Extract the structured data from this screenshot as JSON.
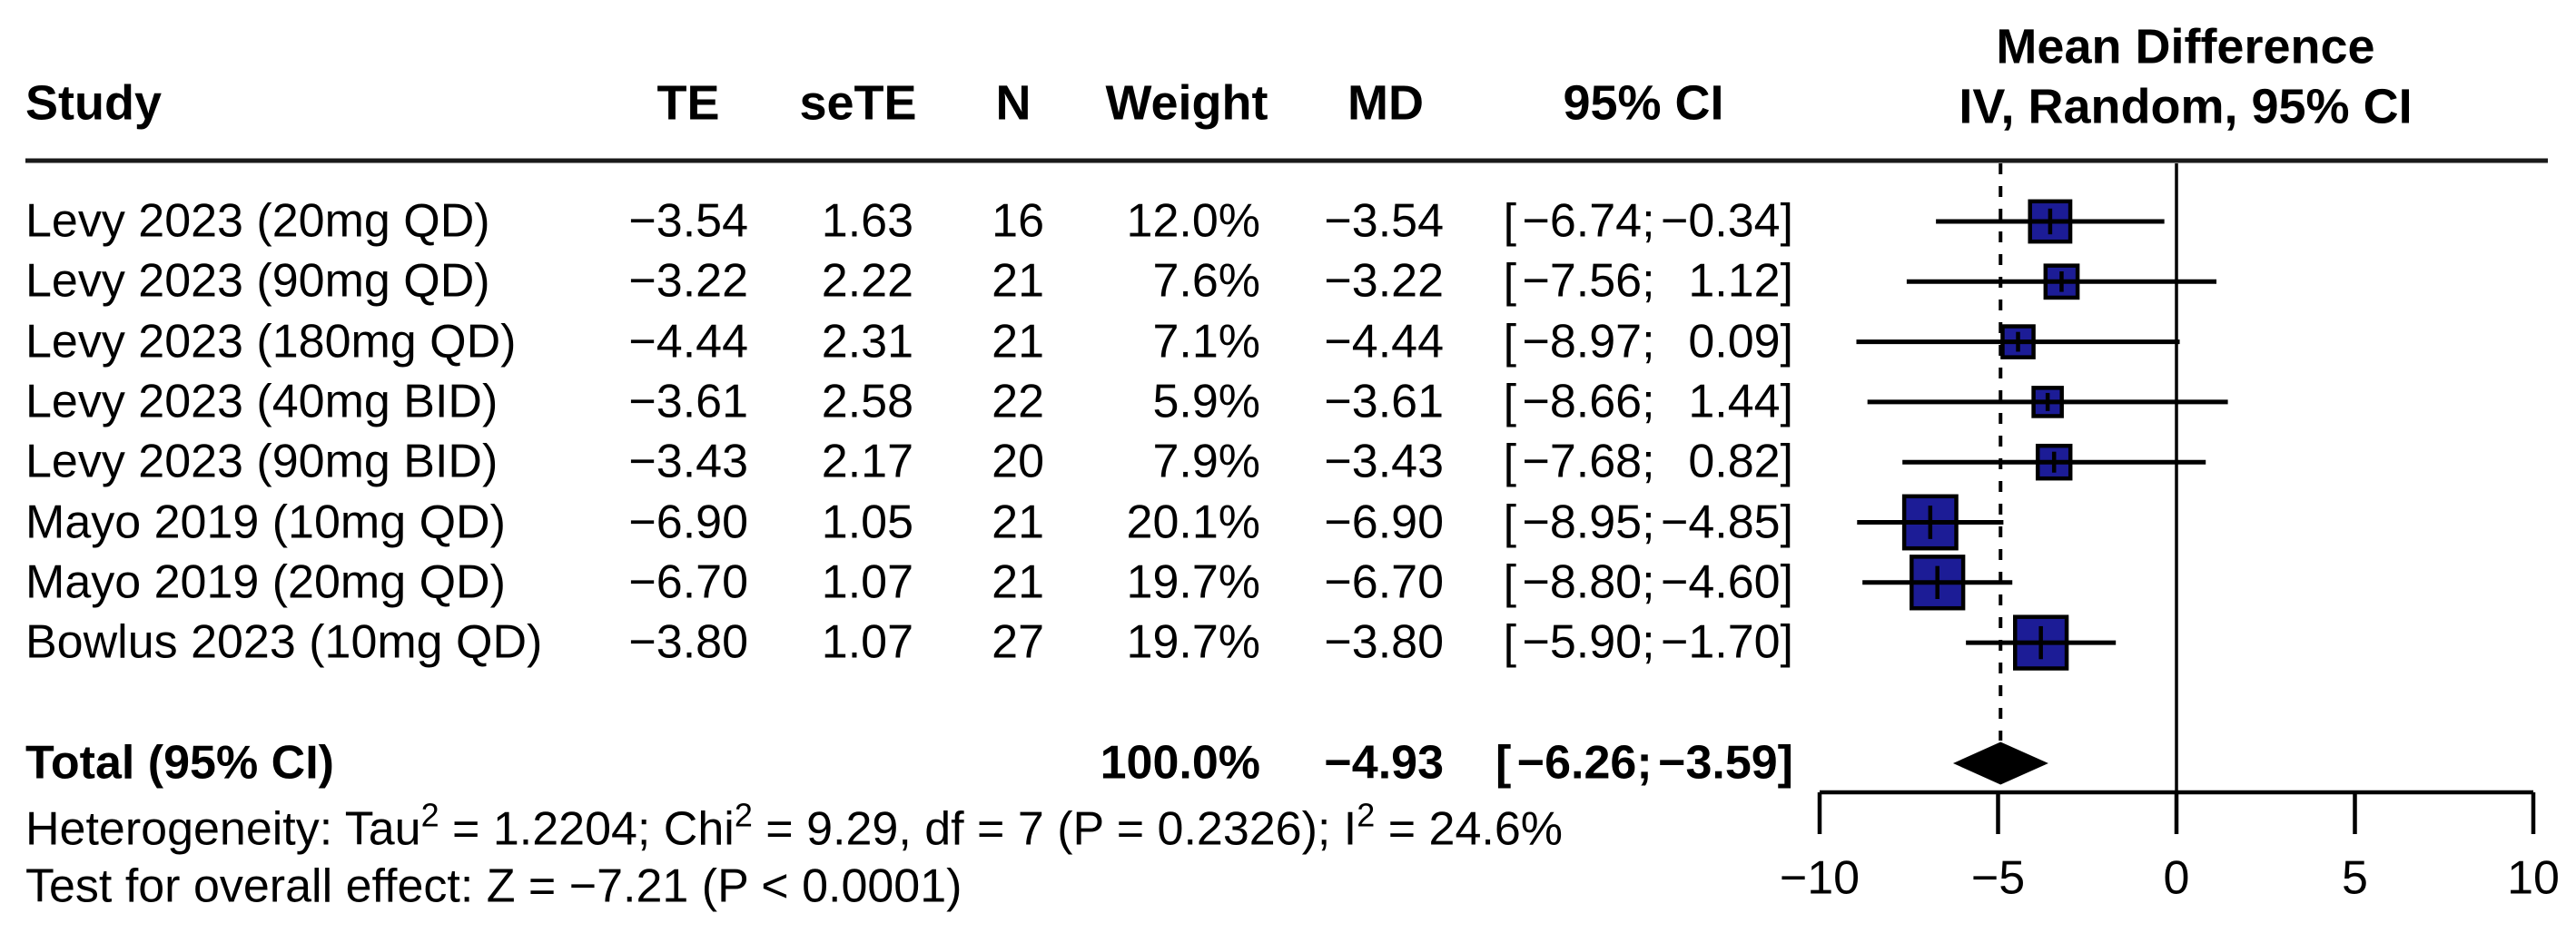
{
  "header": {
    "study": "Study",
    "te": "TE",
    "sete": "seTE",
    "n": "N",
    "weight": "Weight",
    "md": "MD",
    "ci": "95% CI",
    "plot_title_line1": "Mean Difference",
    "plot_title_line2": "IV, Random, 95% CI"
  },
  "table": {
    "ci_open": "[",
    "ci_sep": ";",
    "ci_close": "]"
  },
  "chart_data": {
    "type": "forest",
    "effect_measure": "Mean Difference",
    "model": "IV, Random, 95% CI",
    "x_axis": {
      "range": [
        -10,
        10
      ],
      "ticks": [
        -10,
        -5,
        0,
        5,
        10
      ],
      "tick_labels": [
        "−10",
        "−5",
        "0",
        "5",
        "10"
      ]
    },
    "reference_line_x": 0,
    "pooled_line_x": -4.93,
    "studies": [
      {
        "study": "Levy 2023 (20mg QD)",
        "te": "−3.54",
        "sete": "1.63",
        "n": "16",
        "weight": "12.0%",
        "md": "−3.54",
        "ci_low": "−6.74",
        "ci_high": "−0.34",
        "md_value": -3.54,
        "ci_low_value": -6.74,
        "ci_high_value": -0.34,
        "weight_value": 12.0
      },
      {
        "study": "Levy 2023 (90mg QD)",
        "te": "−3.22",
        "sete": "2.22",
        "n": "21",
        "weight": "7.6%",
        "md": "−3.22",
        "ci_low": "−7.56",
        "ci_high": "1.12",
        "md_value": -3.22,
        "ci_low_value": -7.56,
        "ci_high_value": 1.12,
        "weight_value": 7.6
      },
      {
        "study": "Levy 2023 (180mg QD)",
        "te": "−4.44",
        "sete": "2.31",
        "n": "21",
        "weight": "7.1%",
        "md": "−4.44",
        "ci_low": "−8.97",
        "ci_high": "0.09",
        "md_value": -4.44,
        "ci_low_value": -8.97,
        "ci_high_value": 0.09,
        "weight_value": 7.1
      },
      {
        "study": "Levy 2023 (40mg BID)",
        "te": "−3.61",
        "sete": "2.58",
        "n": "22",
        "weight": "5.9%",
        "md": "−3.61",
        "ci_low": "−8.66",
        "ci_high": "1.44",
        "md_value": -3.61,
        "ci_low_value": -8.66,
        "ci_high_value": 1.44,
        "weight_value": 5.9
      },
      {
        "study": "Levy 2023 (90mg BID)",
        "te": "−3.43",
        "sete": "2.17",
        "n": "20",
        "weight": "7.9%",
        "md": "−3.43",
        "ci_low": "−7.68",
        "ci_high": "0.82",
        "md_value": -3.43,
        "ci_low_value": -7.68,
        "ci_high_value": 0.82,
        "weight_value": 7.9
      },
      {
        "study": "Mayo 2019 (10mg QD)",
        "te": "−6.90",
        "sete": "1.05",
        "n": "21",
        "weight": "20.1%",
        "md": "−6.90",
        "ci_low": "−8.95",
        "ci_high": "−4.85",
        "md_value": -6.9,
        "ci_low_value": -8.95,
        "ci_high_value": -4.85,
        "weight_value": 20.1
      },
      {
        "study": "Mayo 2019 (20mg QD)",
        "te": "−6.70",
        "sete": "1.07",
        "n": "21",
        "weight": "19.7%",
        "md": "−6.70",
        "ci_low": "−8.80",
        "ci_high": "−4.60",
        "md_value": -6.7,
        "ci_low_value": -8.8,
        "ci_high_value": -4.6,
        "weight_value": 19.7
      },
      {
        "study": "Bowlus 2023 (10mg QD)",
        "te": "−3.80",
        "sete": "1.07",
        "n": "27",
        "weight": "19.7%",
        "md": "−3.80",
        "ci_low": "−5.90",
        "ci_high": "−1.70",
        "md_value": -3.8,
        "ci_low_value": -5.9,
        "ci_high_value": -1.7,
        "weight_value": 19.7
      }
    ],
    "pooled": {
      "label": "Total (95% CI)",
      "weight": "100.0%",
      "md": "−4.93",
      "ci_low": "−6.26",
      "ci_high": "−3.59",
      "md_value": -4.93,
      "ci_low_value": -6.26,
      "ci_high_value": -3.59
    },
    "colors": {
      "square": "#1c1c96",
      "square_border": "#000000",
      "ci_line": "#000000",
      "diamond": "#000000",
      "axis": "#000000",
      "text": "#000000"
    }
  },
  "footer": {
    "heterogeneity_segments": [
      {
        "text": "Heterogeneity: Tau",
        "sup": false
      },
      {
        "text": "2",
        "sup": true
      },
      {
        "text": " = 1.2204; Chi",
        "sup": false
      },
      {
        "text": "2",
        "sup": true
      },
      {
        "text": " = 9.29, df = 7 (P = 0.2326); I",
        "sup": false
      },
      {
        "text": "2",
        "sup": true
      },
      {
        "text": " = 24.6%",
        "sup": false
      }
    ],
    "overall_effect": "Test for overall effect: Z = −7.21 (P < 0.0001)"
  }
}
